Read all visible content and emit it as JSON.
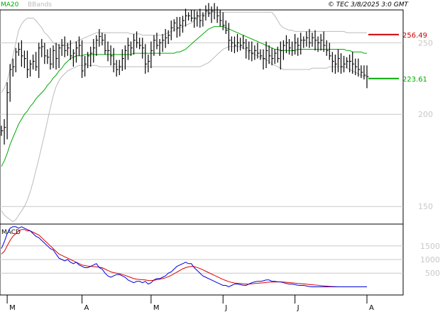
{
  "header": {
    "legend": [
      {
        "label": "MA20",
        "color": "#00aa00"
      },
      {
        "label": "BBands",
        "color": "#bbbbbb"
      }
    ],
    "copyright": "© TEC 3/8/2025 3:0 GMT"
  },
  "colors": {
    "price_bar": "#000000",
    "ma20": "#00aa00",
    "bbands": "#bbbbbb",
    "grid": "#c8c8c8",
    "resistance": "#cc0000",
    "support": "#00aa00",
    "macd": "#0000dd",
    "signal": "#dd0000",
    "axis_label": "#c8c8c8"
  },
  "chart_data": [
    {
      "type": "ohlc",
      "title": "",
      "y_axis": {
        "ticks": [
          "250",
          "200",
          "150"
        ],
        "tick_values": [
          250,
          200,
          150
        ],
        "range": [
          142,
          277
        ],
        "scale": "log"
      },
      "x_axis": {
        "ticks": [
          "M",
          "A",
          "M",
          "J",
          "J",
          "A"
        ],
        "tick_index": [
          2,
          28,
          52,
          77,
          102,
          127
        ]
      },
      "levels": [
        {
          "label": "256.49",
          "value": 256.49,
          "role": "resistance",
          "color": "#cc0000"
        },
        {
          "label": "223.61",
          "value": 223.61,
          "role": "support",
          "color": "#00aa00"
        }
      ],
      "series": [
        {
          "name": "MA20",
          "values": [
            170,
            173,
            177,
            182,
            186,
            190,
            194,
            197,
            200,
            202,
            205,
            207,
            210,
            212,
            214,
            216,
            219,
            221,
            224,
            226,
            229,
            231,
            234,
            236,
            238,
            239,
            240,
            240,
            240,
            241,
            241,
            241,
            241,
            241,
            241,
            241,
            241,
            241,
            241,
            241,
            241,
            241,
            241,
            241,
            241,
            241,
            242,
            242,
            242,
            242,
            242,
            242,
            242,
            242,
            242,
            242,
            242,
            242,
            242,
            242,
            242,
            243,
            243,
            244,
            245,
            247,
            249,
            251,
            253,
            255,
            257,
            259,
            261,
            262,
            263,
            263,
            263,
            263,
            262,
            261,
            260,
            259,
            258,
            257,
            256,
            255,
            254,
            253,
            252,
            251,
            250,
            249,
            248,
            247,
            246,
            245,
            245,
            244,
            244,
            244,
            244,
            244,
            244,
            245,
            245,
            245,
            245,
            245,
            245,
            245,
            245,
            245,
            245,
            245,
            245,
            245,
            245,
            245,
            245,
            245,
            244,
            244,
            243,
            243,
            243,
            243,
            242,
            242
          ]
        },
        {
          "name": "BBands upper",
          "values": [
            214,
            217,
            222,
            230,
            240,
            250,
            260,
            265,
            268,
            270,
            270,
            270,
            268,
            265,
            262,
            258,
            256,
            253,
            250,
            249,
            248,
            248,
            248,
            248,
            249,
            250,
            251,
            252,
            253,
            254,
            255,
            256,
            257,
            258,
            258,
            258,
            258,
            258,
            258,
            258,
            258,
            258,
            258,
            258,
            258,
            257,
            257,
            257,
            257,
            256,
            256,
            256,
            256,
            256,
            256,
            256,
            256,
            257,
            258,
            259,
            260,
            261,
            262,
            263,
            264,
            265,
            266,
            268,
            270,
            272,
            273,
            274,
            275,
            275,
            275,
            275,
            275,
            275,
            275,
            275,
            275,
            275,
            275,
            275,
            275,
            275,
            275,
            275,
            275,
            275,
            275,
            275,
            275,
            275,
            275,
            272,
            268,
            264,
            262,
            261,
            260,
            260,
            259,
            259,
            259,
            259,
            259,
            259,
            259,
            259,
            259,
            259,
            259,
            259,
            259,
            259,
            259,
            259,
            259,
            259,
            258,
            258,
            258,
            258,
            258,
            258,
            258,
            258
          ]
        },
        {
          "name": "BBands lower",
          "values": [
            148,
            146,
            145,
            144,
            143,
            144,
            146,
            148,
            150,
            153,
            157,
            162,
            168,
            174,
            181,
            188,
            196,
            204,
            212,
            218,
            222,
            225,
            227,
            229,
            230,
            231,
            232,
            233,
            233,
            233,
            233,
            233,
            233,
            233,
            232,
            232,
            232,
            232,
            232,
            232,
            232,
            232,
            232,
            232,
            232,
            232,
            232,
            232,
            232,
            232,
            232,
            232,
            232,
            232,
            232,
            232,
            232,
            232,
            232,
            232,
            232,
            232,
            232,
            232,
            232,
            232,
            232,
            232,
            232,
            232,
            233,
            234,
            235,
            237,
            239,
            241,
            243,
            245,
            246,
            247,
            247,
            247,
            247,
            247,
            246,
            245,
            243,
            242,
            241,
            240,
            239,
            238,
            237,
            236,
            234,
            233,
            232,
            231,
            230,
            230,
            230,
            230,
            230,
            230,
            230,
            230,
            230,
            230,
            231,
            231,
            231,
            231,
            231,
            231,
            232,
            232,
            232,
            232,
            232,
            232,
            231,
            230,
            229,
            228,
            227,
            226,
            225,
            225
          ]
        },
        {
          "name": "Price",
          "values": [
            190,
            192,
            214,
            230,
            232,
            243,
            245,
            240,
            238,
            230,
            234,
            236,
            232,
            246,
            247,
            240,
            239,
            234,
            244,
            238,
            246,
            248,
            244,
            246,
            240,
            242,
            246,
            248,
            229,
            234,
            240,
            242,
            246,
            252,
            255,
            252,
            244,
            244,
            240,
            234,
            230,
            232,
            238,
            244,
            248,
            246,
            252,
            250,
            248,
            246,
            234,
            236,
            244,
            252,
            248,
            250,
            252,
            254,
            256,
            262,
            266,
            262,
            264,
            268,
            272,
            272,
            270,
            270,
            272,
            268,
            272,
            276,
            274,
            276,
            277,
            272,
            268,
            264,
            260,
            252,
            250,
            248,
            250,
            248,
            250,
            246,
            244,
            242,
            244,
            242,
            240,
            238,
            244,
            240,
            238,
            242,
            238,
            244,
            248,
            250,
            246,
            244,
            250,
            248,
            252,
            252,
            254,
            250,
            254,
            252,
            250,
            252,
            248,
            244,
            240,
            236,
            234,
            238,
            232,
            234,
            236,
            236,
            234,
            232,
            230,
            228,
            226,
            225
          ]
        }
      ]
    },
    {
      "type": "line",
      "title": "MACD",
      "y_axis": {
        "ticks": [
          "1500",
          "1000",
          "500"
        ],
        "tick_values": [
          1500,
          1000,
          500
        ],
        "range": [
          -300,
          2300
        ]
      },
      "x_axis": {
        "ticks": [
          "M",
          "A",
          "M",
          "J",
          "J",
          "A"
        ],
        "tick_index": [
          2,
          28,
          52,
          77,
          102,
          127
        ]
      },
      "series": [
        {
          "name": "MACD",
          "values": [
            1400,
            1650,
            1950,
            2150,
            2200,
            2200,
            2150,
            2200,
            2150,
            2100,
            2050,
            1950,
            1850,
            1800,
            1700,
            1600,
            1500,
            1400,
            1350,
            1200,
            1050,
            1000,
            950,
            1000,
            900,
            850,
            900,
            800,
            750,
            700,
            700,
            750,
            800,
            850,
            700,
            650,
            500,
            400,
            350,
            400,
            450,
            450,
            400,
            350,
            250,
            200,
            150,
            200,
            200,
            150,
            200,
            100,
            150,
            250,
            300,
            300,
            350,
            400,
            500,
            550,
            650,
            750,
            800,
            850,
            900,
            850,
            850,
            700,
            600,
            500,
            400,
            350,
            300,
            250,
            200,
            150,
            100,
            50,
            50,
            0,
            50,
            100,
            100,
            80,
            60,
            50,
            100,
            150,
            180,
            200,
            200,
            220,
            250,
            250,
            200,
            200,
            180,
            180,
            150,
            120,
            100,
            100,
            80,
            60,
            50,
            50,
            30,
            10,
            0,
            0,
            0,
            0,
            0,
            0,
            0,
            0,
            0,
            0,
            0,
            0,
            0,
            0,
            0,
            0,
            0,
            0,
            0,
            0
          ]
        },
        {
          "name": "Signal",
          "values": [
            1200,
            1300,
            1500,
            1700,
            1850,
            1950,
            2050,
            2100,
            2100,
            2050,
            2050,
            2000,
            1950,
            1900,
            1800,
            1700,
            1600,
            1500,
            1400,
            1300,
            1200,
            1150,
            1100,
            1050,
            1000,
            950,
            900,
            850,
            800,
            780,
            760,
            750,
            740,
            730,
            720,
            700,
            650,
            600,
            550,
            520,
            500,
            480,
            450,
            420,
            380,
            340,
            300,
            280,
            270,
            260,
            250,
            230,
            230,
            240,
            260,
            280,
            300,
            330,
            370,
            420,
            480,
            540,
            600,
            660,
            700,
            730,
            750,
            740,
            710,
            670,
            620,
            570,
            520,
            470,
            420,
            370,
            320,
            270,
            230,
            190,
            160,
            140,
            130,
            120,
            110,
            100,
            100,
            110,
            120,
            130,
            140,
            150,
            160,
            170,
            175,
            178,
            180,
            178,
            172,
            165,
            155,
            145,
            135,
            125,
            115,
            105,
            95,
            85,
            75,
            65,
            55,
            45,
            35,
            25,
            15,
            10,
            5,
            0,
            0,
            0,
            0,
            0,
            0,
            0,
            0,
            0,
            0,
            0
          ]
        }
      ]
    }
  ]
}
